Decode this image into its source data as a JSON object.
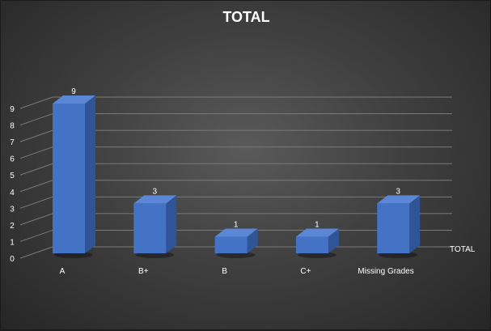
{
  "chart_data": {
    "type": "bar",
    "title": "TOTAL",
    "categories": [
      "A",
      "B+",
      "B",
      "C+",
      "Missing Grades"
    ],
    "series": [
      {
        "name": "TOTAL",
        "values": [
          9,
          3,
          1,
          1,
          3
        ]
      }
    ],
    "ylim": [
      0,
      9
    ],
    "yticks": [
      0,
      1,
      2,
      3,
      4,
      5,
      6,
      7,
      8,
      9
    ],
    "grid": true,
    "legend": "right",
    "data_labels": true,
    "style": "3d-column",
    "colors": {
      "bar_front": "#4472c4",
      "bar_side": "#2f5597",
      "bar_top": "#5b87d6",
      "grid": "#7a7a7a",
      "text": "#ffffff"
    }
  }
}
